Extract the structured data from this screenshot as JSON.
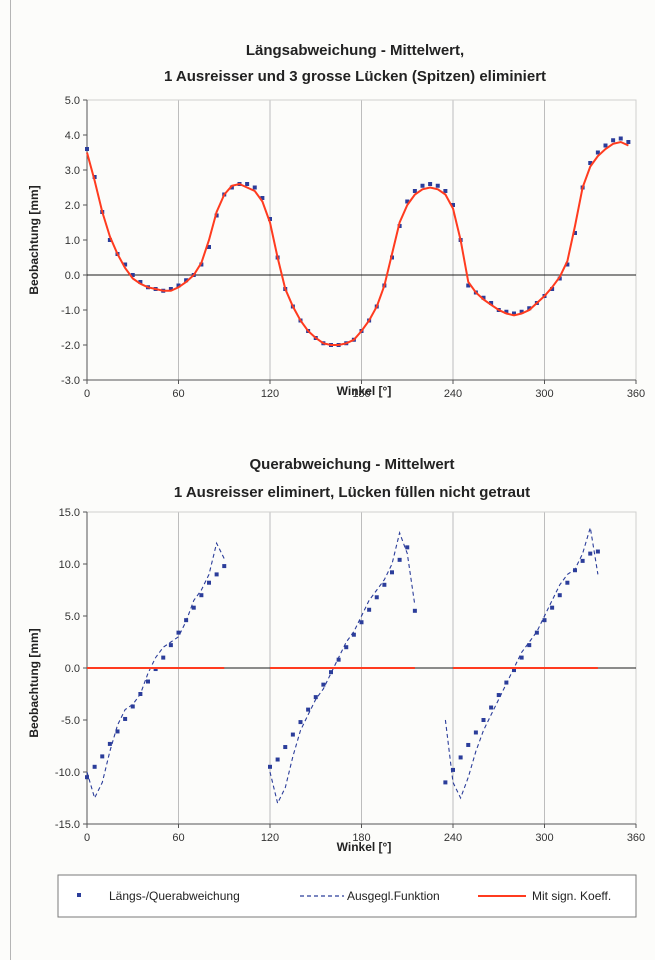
{
  "chart_data": [
    {
      "type": "scatter",
      "title_lines": [
        "Längsabweichung - Mittelwert,",
        "1 Ausreisser und 3 grosse Lücken (Spitzen) eliminiert"
      ],
      "xlabel": "Winkel [°]",
      "ylabel": "Beobachtung [mm]",
      "xlim": [
        0,
        360
      ],
      "ylim": [
        -3,
        5
      ],
      "xticks": [
        "0",
        "60",
        "120",
        "180",
        "240",
        "300",
        "360"
      ],
      "yticks": [
        "-3.0",
        "-2.0",
        "-1.0",
        "0.0",
        "1.0",
        "2.0",
        "3.0",
        "4.0",
        "5.0"
      ],
      "grid": "vertical",
      "series": [
        {
          "name": "Längs-/Querabweichung",
          "style": "markers",
          "x": [
            0,
            5,
            10,
            15,
            20,
            25,
            30,
            35,
            40,
            45,
            50,
            55,
            60,
            65,
            70,
            75,
            80,
            85,
            90,
            95,
            100,
            105,
            110,
            115,
            120,
            125,
            130,
            135,
            140,
            145,
            150,
            155,
            160,
            165,
            170,
            175,
            180,
            185,
            190,
            195,
            200,
            205,
            210,
            215,
            220,
            225,
            230,
            235,
            240,
            245,
            250,
            255,
            260,
            265,
            270,
            275,
            280,
            285,
            290,
            295,
            300,
            305,
            310,
            315,
            320,
            325,
            330,
            335,
            340,
            345,
            350,
            355
          ],
          "y": [
            3.6,
            2.8,
            1.8,
            1.0,
            0.6,
            0.3,
            0.0,
            -0.2,
            -0.35,
            -0.4,
            -0.45,
            -0.4,
            -0.3,
            -0.15,
            0.0,
            0.3,
            0.8,
            1.7,
            2.3,
            2.5,
            2.6,
            2.6,
            2.5,
            2.2,
            1.6,
            0.5,
            -0.4,
            -0.9,
            -1.3,
            -1.6,
            -1.8,
            -1.95,
            -2.0,
            -2.0,
            -1.95,
            -1.85,
            -1.6,
            -1.3,
            -0.9,
            -0.3,
            0.5,
            1.4,
            2.1,
            2.4,
            2.55,
            2.6,
            2.55,
            2.4,
            2.0,
            1.0,
            -0.3,
            -0.5,
            -0.65,
            -0.8,
            -1.0,
            -1.05,
            -1.1,
            -1.05,
            -0.95,
            -0.8,
            -0.6,
            -0.4,
            -0.1,
            0.3,
            1.2,
            2.5,
            3.2,
            3.5,
            3.7,
            3.85,
            3.9,
            3.8
          ]
        },
        {
          "name": "Mit sign. Koeff.",
          "style": "line",
          "x": [
            0,
            5,
            10,
            15,
            20,
            25,
            30,
            35,
            40,
            45,
            50,
            55,
            60,
            65,
            70,
            75,
            80,
            85,
            90,
            95,
            100,
            105,
            110,
            115,
            120,
            125,
            130,
            135,
            140,
            145,
            150,
            155,
            160,
            165,
            170,
            175,
            180,
            185,
            190,
            195,
            200,
            205,
            210,
            215,
            220,
            225,
            230,
            235,
            240,
            245,
            250,
            255,
            260,
            265,
            270,
            275,
            280,
            285,
            290,
            295,
            300,
            305,
            310,
            315,
            320,
            325,
            330,
            335,
            340,
            345,
            350,
            355
          ],
          "y": [
            3.5,
            2.7,
            1.8,
            1.1,
            0.6,
            0.2,
            -0.1,
            -0.25,
            -0.35,
            -0.4,
            -0.45,
            -0.45,
            -0.35,
            -0.2,
            0.0,
            0.35,
            1.0,
            1.8,
            2.3,
            2.55,
            2.6,
            2.5,
            2.4,
            2.1,
            1.5,
            0.5,
            -0.4,
            -0.9,
            -1.3,
            -1.6,
            -1.8,
            -1.95,
            -2.0,
            -2.0,
            -1.95,
            -1.85,
            -1.6,
            -1.3,
            -0.9,
            -0.3,
            0.6,
            1.5,
            2.0,
            2.3,
            2.45,
            2.5,
            2.45,
            2.3,
            1.9,
            1.0,
            -0.2,
            -0.5,
            -0.7,
            -0.85,
            -1.0,
            -1.1,
            -1.15,
            -1.1,
            -1.0,
            -0.8,
            -0.6,
            -0.35,
            -0.05,
            0.4,
            1.4,
            2.5,
            3.1,
            3.4,
            3.6,
            3.75,
            3.8,
            3.7
          ]
        }
      ]
    },
    {
      "type": "scatter",
      "title_lines": [
        "Querabweichung - Mittelwert",
        "1 Ausreisser eliminert, Lücken füllen nicht getraut"
      ],
      "xlabel": "Winkel [°]",
      "ylabel": "Beobachtung [mm]",
      "xlim": [
        0,
        360
      ],
      "ylim": [
        -15,
        15
      ],
      "xticks": [
        "0",
        "60",
        "120",
        "180",
        "240",
        "300",
        "360"
      ],
      "yticks": [
        "-15.0",
        "-10.0",
        "-5.0",
        "0.0",
        "5.0",
        "10.0",
        "15.0"
      ],
      "grid": "vertical",
      "series": [
        {
          "name": "Längs-/Querabweichung",
          "style": "markers",
          "x": [
            0,
            5,
            10,
            15,
            20,
            25,
            30,
            35,
            40,
            45,
            50,
            55,
            60,
            65,
            70,
            75,
            80,
            85,
            90,
            120,
            125,
            130,
            135,
            140,
            145,
            150,
            155,
            160,
            165,
            170,
            175,
            180,
            185,
            190,
            195,
            200,
            205,
            210,
            215,
            235,
            240,
            245,
            250,
            255,
            260,
            265,
            270,
            275,
            280,
            285,
            290,
            295,
            300,
            305,
            310,
            315,
            320,
            325,
            330,
            335
          ],
          "y": [
            -10.5,
            -9.5,
            -8.5,
            -7.3,
            -6.1,
            -4.9,
            -3.7,
            -2.5,
            -1.3,
            -0.1,
            1.0,
            2.2,
            3.4,
            4.6,
            5.8,
            7.0,
            8.2,
            9.0,
            9.8,
            -9.5,
            -8.8,
            -7.6,
            -6.4,
            -5.2,
            -4.0,
            -2.8,
            -1.6,
            -0.4,
            0.8,
            2.0,
            3.2,
            4.4,
            5.6,
            6.8,
            8.0,
            9.2,
            10.4,
            11.6,
            5.5,
            -11.0,
            -9.8,
            -8.6,
            -7.4,
            -6.2,
            -5.0,
            -3.8,
            -2.6,
            -1.4,
            -0.2,
            1.0,
            2.2,
            3.4,
            4.6,
            5.8,
            7.0,
            8.2,
            9.4,
            10.3,
            11.0,
            11.2
          ]
        },
        {
          "name": "Ausgegl.Funktion",
          "style": "dashed",
          "x": [
            0,
            5,
            10,
            15,
            20,
            25,
            30,
            35,
            40,
            45,
            50,
            55,
            60,
            65,
            70,
            75,
            80,
            85,
            90,
            null,
            120,
            125,
            130,
            135,
            140,
            145,
            150,
            155,
            160,
            165,
            170,
            175,
            180,
            185,
            190,
            195,
            200,
            205,
            210,
            215,
            null,
            235,
            240,
            245,
            250,
            255,
            260,
            265,
            270,
            275,
            280,
            285,
            290,
            295,
            300,
            305,
            310,
            315,
            320,
            325,
            330,
            335
          ],
          "y": [
            -10.0,
            -12.5,
            -11.0,
            -8.0,
            -5.5,
            -4.0,
            -3.5,
            -2.5,
            -0.5,
            1.0,
            2.0,
            2.5,
            3.0,
            4.5,
            6.5,
            7.5,
            9.0,
            12.0,
            10.5,
            null,
            -10.0,
            -13.0,
            -11.5,
            -8.5,
            -6.0,
            -4.5,
            -3.0,
            -2.0,
            -0.5,
            1.0,
            2.5,
            3.5,
            5.0,
            6.5,
            7.5,
            8.5,
            10.0,
            13.0,
            11.0,
            6.0,
            null,
            -5.0,
            -11.0,
            -12.5,
            -10.5,
            -8.0,
            -6.0,
            -4.5,
            -3.0,
            -1.5,
            0.0,
            1.5,
            2.5,
            3.5,
            5.0,
            6.5,
            8.0,
            9.0,
            9.5,
            11.0,
            13.5,
            9.0
          ]
        },
        {
          "name": "Mit sign. Koeff.",
          "style": "line",
          "x": [
            0,
            90,
            null,
            120,
            215,
            null,
            240,
            335
          ],
          "y": [
            0,
            0,
            null,
            0,
            0,
            null,
            0,
            0
          ]
        }
      ]
    }
  ],
  "legend": [
    {
      "label": "Längs-/Querabweichung",
      "style": "markers",
      "color": "#2b3d9a"
    },
    {
      "label": "Ausgegl.Funktion",
      "style": "dashed",
      "color": "#2b3d9a"
    },
    {
      "label": "Mit sign. Koeff.",
      "style": "line",
      "color": "#ff3b1f"
    }
  ],
  "colors": {
    "marker": "#2b3d9a",
    "fit": "#ff3b1f",
    "zero_line": "#1a1a1a",
    "grid": "#bdbdbd"
  }
}
